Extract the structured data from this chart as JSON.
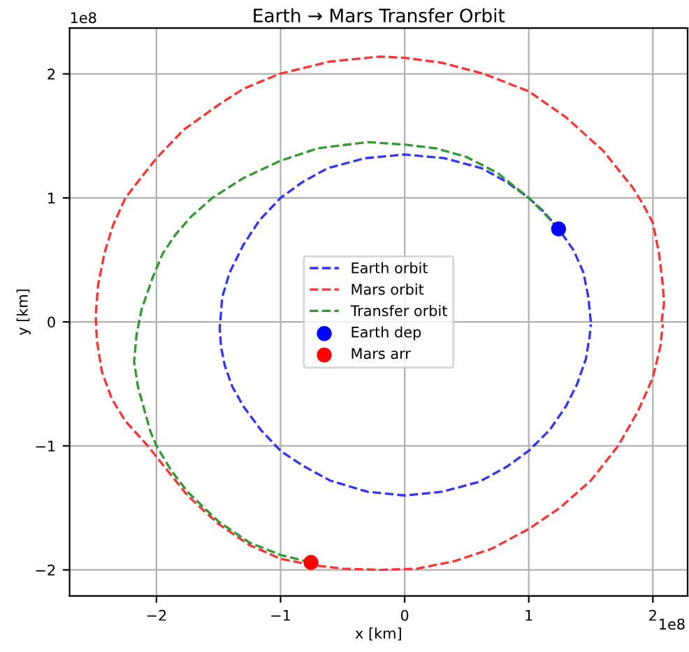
{
  "chart_data": {
    "type": "line",
    "title": "Earth → Mars Transfer Orbit",
    "xlabel": "x [km]",
    "ylabel": "y [km]",
    "xlim": [
      -2.7,
      2.28
    ],
    "ylim": [
      -2.21,
      2.37
    ],
    "xticks": [
      {
        "value": -2,
        "label": "−2"
      },
      {
        "value": -1,
        "label": "−1"
      },
      0,
      1,
      2
    ],
    "yticks": [
      {
        "value": -2,
        "label": "−2"
      },
      {
        "value": -1,
        "label": "−1"
      },
      0,
      1,
      2
    ],
    "annotations": [
      "1e8",
      "1e8"
    ],
    "grid": true,
    "legend": "center",
    "series": [
      {
        "name": "Earth orbit",
        "line_style": "dashed",
        "marker": "none",
        "color": "#3333ff",
        "x": [
          1.5,
          1.48,
          1.44,
          1.36,
          1.24,
          1.12,
          1.0,
          0.82,
          0.62,
          0.32,
          0,
          -0.32,
          -0.62,
          -0.82,
          -1.0,
          -1.17,
          -1.3,
          -1.41,
          -1.47,
          -1.49,
          -1.48,
          -1.45,
          -1.39,
          -1.3,
          -1.16,
          -1.0,
          -0.82,
          -0.6,
          -0.3,
          0,
          0.3,
          0.6,
          0.82,
          1.0,
          1.17,
          1.3,
          1.39,
          1.46,
          1.49,
          1.5
        ],
        "values": [
          0,
          0.2,
          0.4,
          0.58,
          0.75,
          0.89,
          1.0,
          1.13,
          1.24,
          1.32,
          1.35,
          1.32,
          1.24,
          1.13,
          1.0,
          0.82,
          0.62,
          0.4,
          0.2,
          -0.05,
          -0.2,
          -0.35,
          -0.52,
          -0.68,
          -0.87,
          -1.04,
          -1.16,
          -1.28,
          -1.37,
          -1.4,
          -1.37,
          -1.29,
          -1.17,
          -1.04,
          -0.87,
          -0.68,
          -0.5,
          -0.3,
          -0.12,
          -0.02
        ]
      },
      {
        "name": "Mars orbit",
        "line_style": "dashed",
        "marker": "none",
        "color": "#ff3333",
        "x": [
          2.07,
          2.09,
          2.08,
          2.05,
          2.0,
          1.92,
          1.84,
          1.6,
          1.3,
          1.0,
          0.64,
          0.3,
          0,
          -0.2,
          -0.6,
          -1.01,
          -1.3,
          -1.5,
          -1.78,
          -2.0,
          -2.15,
          -2.25,
          -2.35,
          -2.42,
          -2.47,
          -2.49,
          -2.48,
          -2.44,
          -2.36,
          -2.25,
          -2.07,
          -1.95,
          -1.75,
          -1.5,
          -1.25,
          -1.0,
          -0.755,
          -0.5,
          -0.2,
          0.1,
          0.4,
          0.7,
          1.0,
          1.25,
          1.5,
          1.72,
          1.88,
          2.0,
          2.06,
          2.08
        ],
        "values": [
          0,
          0.15,
          0.3,
          0.55,
          0.8,
          0.95,
          1.08,
          1.38,
          1.65,
          1.86,
          2.0,
          2.09,
          2.13,
          2.14,
          2.1,
          2.0,
          1.88,
          1.75,
          1.55,
          1.32,
          1.13,
          1.0,
          0.78,
          0.55,
          0.3,
          0.05,
          -0.15,
          -0.4,
          -0.62,
          -0.8,
          -1.0,
          -1.15,
          -1.4,
          -1.63,
          -1.8,
          -1.91,
          -1.96,
          -1.99,
          -2.0,
          -1.99,
          -1.93,
          -1.83,
          -1.67,
          -1.5,
          -1.28,
          -1.0,
          -0.72,
          -0.45,
          -0.2,
          -0.02
        ]
      },
      {
        "name": "Transfer orbit",
        "line_style": "dashed",
        "marker": "none",
        "color": "#339933",
        "x": [
          1.24,
          1.12,
          1.0,
          0.75,
          0.5,
          0.25,
          0,
          -0.3,
          -0.7,
          -1.0,
          -1.3,
          -1.55,
          -1.72,
          -1.85,
          -1.95,
          -2.03,
          -2.12,
          -2.16,
          -2.18,
          -2.15,
          -2.1,
          -2.05,
          -2.0,
          -1.88,
          -1.75,
          -1.5,
          -1.25,
          -1.0,
          -0.755
        ],
        "values": [
          0.75,
          0.88,
          1.0,
          1.2,
          1.33,
          1.4,
          1.43,
          1.45,
          1.4,
          1.3,
          1.16,
          1.0,
          0.85,
          0.7,
          0.55,
          0.36,
          0.1,
          -0.1,
          -0.32,
          -0.52,
          -0.7,
          -0.88,
          -1.0,
          -1.2,
          -1.37,
          -1.61,
          -1.78,
          -1.88,
          -1.94
        ]
      },
      {
        "name": "Earth dep",
        "type": "scatter",
        "marker": "circle",
        "color": "#0000ff",
        "x": [
          1.24
        ],
        "values": [
          0.75
        ]
      },
      {
        "name": "Mars arr",
        "type": "scatter",
        "marker": "circle",
        "color": "#ff0000",
        "x": [
          -0.755
        ],
        "values": [
          -1.94
        ]
      }
    ]
  }
}
